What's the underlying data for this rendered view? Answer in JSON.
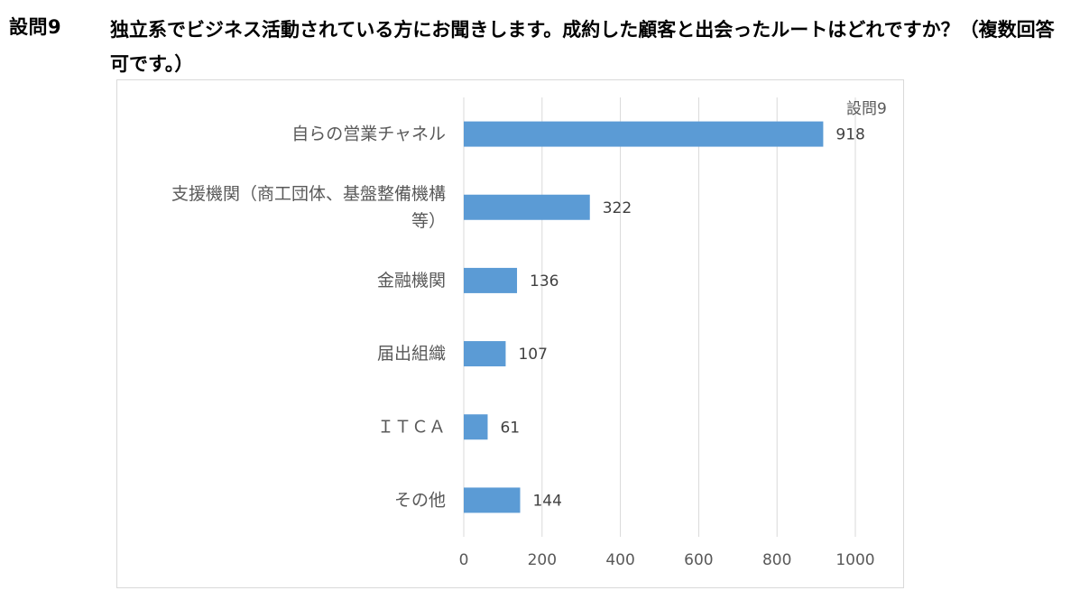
{
  "question": {
    "number": "設問9",
    "text": "独立系でビジネス活動されている方にお聞きします。成約した顧客と出会ったルートはどれですか？（複数回答可です。）"
  },
  "chart_data": {
    "type": "bar",
    "orientation": "horizontal",
    "legend": "設問9",
    "categories": [
      "自らの営業チャネル",
      "支援機関（商工団体、基盤整備機構等）",
      "金融機関",
      "届出組織",
      "ＩＴＣＡ",
      "その他"
    ],
    "category_lines": [
      [
        "自らの営業チャネル"
      ],
      [
        "支援機関（商工団体、基盤整備機構",
        "等）"
      ],
      [
        "金融機関"
      ],
      [
        "届出組織"
      ],
      [
        "ＩＴＣＡ"
      ],
      [
        "その他"
      ]
    ],
    "series": [
      {
        "name": "設問9",
        "values": [
          918,
          322,
          136,
          107,
          61,
          144
        ]
      }
    ],
    "xlim": [
      0,
      1000
    ],
    "x_ticks": [
      0,
      200,
      400,
      600,
      800,
      1000
    ],
    "grid": true,
    "bar_color": "#5b9bd5",
    "grid_color": "#d9d9d9",
    "data_labels": true
  }
}
